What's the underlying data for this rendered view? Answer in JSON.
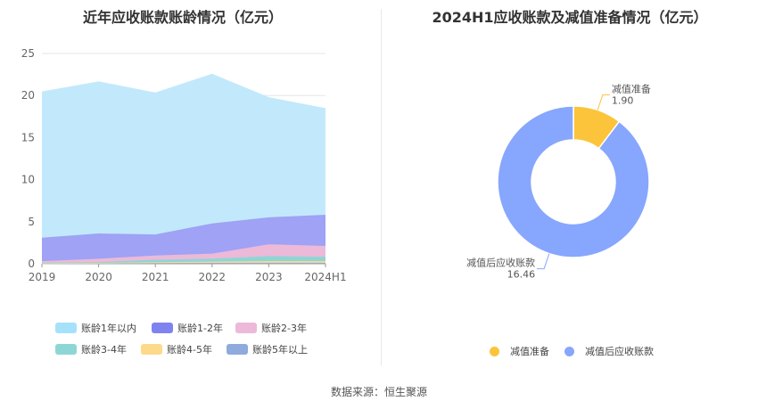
{
  "left_chart": {
    "title": "近年应收账款账龄情况（亿元）",
    "chart_data": {
      "type": "area",
      "stacked": true,
      "categories": [
        "2019",
        "2020",
        "2021",
        "2022",
        "2023",
        "2024H1"
      ],
      "ylim": [
        0,
        25
      ],
      "yticks": [
        0,
        5,
        10,
        15,
        20,
        25
      ],
      "grid": true,
      "legend_position": "bottom",
      "series": [
        {
          "name": "账龄5年以上",
          "color": "#8faadc",
          "values": [
            0.02,
            0.05,
            0.08,
            0.1,
            0.12,
            0.12
          ]
        },
        {
          "name": "账龄4-5年",
          "color": "#fdd98b",
          "values": [
            0.03,
            0.05,
            0.1,
            0.15,
            0.2,
            0.2
          ]
        },
        {
          "name": "账龄3-4年",
          "color": "#8ed6d6",
          "values": [
            0.05,
            0.1,
            0.3,
            0.35,
            0.6,
            0.5
          ]
        },
        {
          "name": "账龄2-3年",
          "color": "#ecb9d9",
          "values": [
            0.2,
            0.4,
            0.5,
            0.6,
            1.4,
            1.3
          ]
        },
        {
          "name": "账龄1-2年",
          "color": "#9fa2f5",
          "values": [
            2.8,
            3.0,
            2.5,
            3.6,
            3.2,
            3.7
          ]
        },
        {
          "name": "账龄1年以内",
          "color": "#c2e9fb",
          "values": [
            17.3,
            18.0,
            16.8,
            17.7,
            14.2,
            12.6
          ]
        }
      ]
    },
    "legend": [
      {
        "label": "账龄1年以内",
        "color": "#a6e1fa"
      },
      {
        "label": "账龄1-2年",
        "color": "#7f83f0"
      },
      {
        "label": "账龄2-3年",
        "color": "#ecb9d9"
      },
      {
        "label": "账龄3-4年",
        "color": "#8ed6d6"
      },
      {
        "label": "账龄4-5年",
        "color": "#fdd98b"
      },
      {
        "label": "账龄5年以上",
        "color": "#8faadc"
      }
    ]
  },
  "right_chart": {
    "title": "2024H1应收账款及减值准备情况（亿元）",
    "chart_data": {
      "type": "pie",
      "donut": true,
      "legend_position": "bottom",
      "slices": [
        {
          "name": "减值准备",
          "value": 1.9,
          "value_label": "1.90",
          "color": "#fbc43b"
        },
        {
          "name": "减值后应收账款",
          "value": 16.46,
          "value_label": "16.46",
          "color": "#87a6fd"
        }
      ]
    }
  },
  "footer": "数据来源：恒生聚源"
}
